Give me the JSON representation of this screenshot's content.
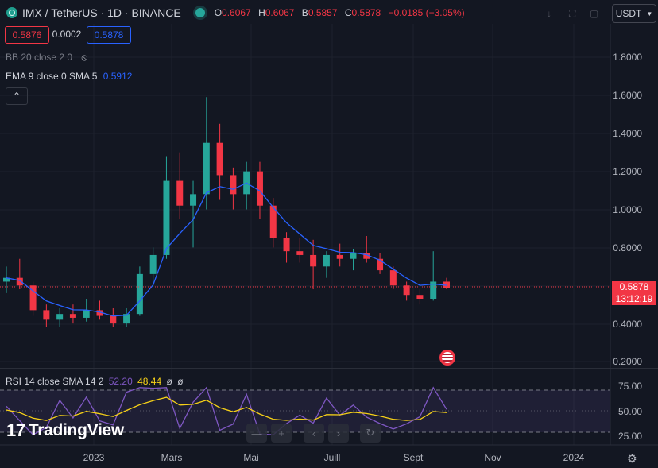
{
  "header": {
    "title": "IMX / TetherUS · 1D · BINANCE",
    "ohlc": [
      {
        "key": "O",
        "value": "0.6067"
      },
      {
        "key": "H",
        "value": "0.6067"
      },
      {
        "key": "B",
        "value": "0.5857"
      },
      {
        "key": "C",
        "value": "0.5878"
      }
    ],
    "change": "−0.0185 (−3.05%)",
    "currency": "USDT",
    "icons": [
      "arrow-down-icon",
      "fullscreen-icon",
      "restore-icon",
      "expand-icon"
    ]
  },
  "price_boxes": {
    "sell": "0.5876",
    "spread": "0.0002",
    "buy": "0.5878"
  },
  "indicators": {
    "bb": "BB 20 close 2 0",
    "ema_label": "EMA 9 close 0 SMA 5",
    "ema_value": "0.5912",
    "rsi_label": "RSI 14 close SMA 14 2",
    "rsi_v1": "52.20",
    "rsi_v2": "48.44",
    "rsi_v3": "ø",
    "rsi_v4": "ø"
  },
  "price_axis": [
    "1.8000",
    "1.6000",
    "1.4000",
    "1.2000",
    "1.0000",
    "0.8000",
    "0.4000",
    "0.2000"
  ],
  "last_price": {
    "value": "0.5878",
    "countdown": "13:12:19"
  },
  "rsi_axis": [
    "75.00",
    "50.00",
    "25.00"
  ],
  "time_axis": [
    "2023",
    "Mars",
    "Mai",
    "Juill",
    "Sept",
    "Nov",
    "2024"
  ],
  "logo": {
    "text": "TradingView"
  },
  "nav_controls": [
    "minus-icon",
    "plus-icon",
    "chevron-left-icon",
    "chevron-right-icon",
    "reset-icon"
  ],
  "colors": {
    "background": "#131722",
    "up": "#26a69a",
    "down": "#f23645",
    "ema": "#2962ff",
    "rsi": "#7e57c2",
    "rsi_ma": "#f7d117",
    "currency_border": "#434651"
  },
  "chart_data": {
    "type": "candlestick",
    "series": [
      {
        "name": "IMX / TetherUS",
        "values": [
          [
            0.62,
            0.7,
            0.56,
            0.64
          ],
          [
            0.64,
            0.74,
            0.58,
            0.6
          ],
          [
            0.6,
            0.62,
            0.44,
            0.47
          ],
          [
            0.47,
            0.5,
            0.38,
            0.42
          ],
          [
            0.42,
            0.48,
            0.38,
            0.45
          ],
          [
            0.45,
            0.5,
            0.4,
            0.43
          ],
          [
            0.43,
            0.53,
            0.41,
            0.47
          ],
          [
            0.47,
            0.52,
            0.42,
            0.44
          ],
          [
            0.44,
            0.48,
            0.38,
            0.4
          ],
          [
            0.4,
            0.48,
            0.38,
            0.45
          ],
          [
            0.45,
            0.7,
            0.44,
            0.66
          ],
          [
            0.66,
            0.8,
            0.6,
            0.76
          ],
          [
            0.76,
            1.28,
            0.74,
            1.15
          ],
          [
            1.15,
            1.3,
            0.95,
            1.02
          ],
          [
            1.02,
            1.15,
            0.8,
            1.08
          ],
          [
            1.08,
            1.59,
            1.0,
            1.35
          ],
          [
            1.35,
            1.45,
            1.05,
            1.18
          ],
          [
            1.18,
            1.22,
            1.0,
            1.08
          ],
          [
            1.08,
            1.25,
            1.0,
            1.2
          ],
          [
            1.2,
            1.25,
            0.95,
            1.02
          ],
          [
            1.02,
            1.06,
            0.8,
            0.85
          ],
          [
            0.85,
            0.88,
            0.72,
            0.78
          ],
          [
            0.78,
            0.85,
            0.72,
            0.76
          ],
          [
            0.76,
            0.84,
            0.58,
            0.7
          ],
          [
            0.7,
            0.78,
            0.64,
            0.76
          ],
          [
            0.76,
            0.82,
            0.7,
            0.74
          ],
          [
            0.74,
            0.79,
            0.68,
            0.77
          ],
          [
            0.77,
            0.86,
            0.72,
            0.74
          ],
          [
            0.74,
            0.77,
            0.66,
            0.68
          ],
          [
            0.68,
            0.7,
            0.58,
            0.6
          ],
          [
            0.6,
            0.62,
            0.52,
            0.55
          ],
          [
            0.55,
            0.58,
            0.5,
            0.53
          ],
          [
            0.53,
            0.78,
            0.52,
            0.62
          ],
          [
            0.62,
            0.64,
            0.58,
            0.5878
          ]
        ]
      }
    ],
    "ylim": [
      0.2,
      1.8
    ],
    "rsi": {
      "value": 52.2,
      "ma": 48.44,
      "ylim": [
        25,
        75
      ]
    }
  }
}
